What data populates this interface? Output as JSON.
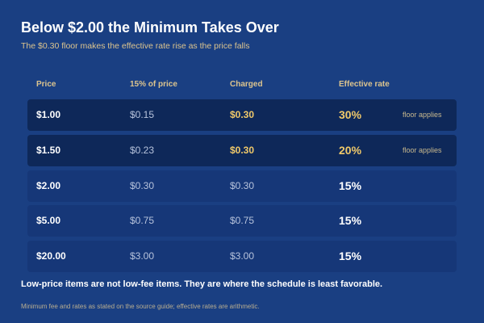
{
  "header": {
    "title": "Below $2.00 the Minimum Takes Over",
    "subtitle": "The $0.30 floor makes the effective rate rise as the price falls"
  },
  "table": {
    "columns": [
      "Price",
      "15% of price",
      "Charged",
      "Effective rate"
    ],
    "rows": [
      {
        "price": "$1.00",
        "pct": "$0.15",
        "charged": "$0.30",
        "rate": "30%",
        "note": "floor applies"
      },
      {
        "price": "$1.50",
        "pct": "$0.23",
        "charged": "$0.30",
        "rate": "20%",
        "note": "floor applies"
      },
      {
        "price": "$2.00",
        "pct": "$0.30",
        "charged": "$0.30",
        "rate": "15%"
      },
      {
        "price": "$5.00",
        "pct": "$0.75",
        "charged": "$0.75",
        "rate": "15%"
      },
      {
        "price": "$20.00",
        "pct": "$3.00",
        "charged": "$3.00",
        "rate": "15%"
      }
    ]
  },
  "footer": {
    "takeaway": "Low-price items are not low-fee items. They are where the schedule is least favorable.",
    "note": "Minimum fee and rates as stated on the source guide; effective rates are arithmetic."
  }
}
